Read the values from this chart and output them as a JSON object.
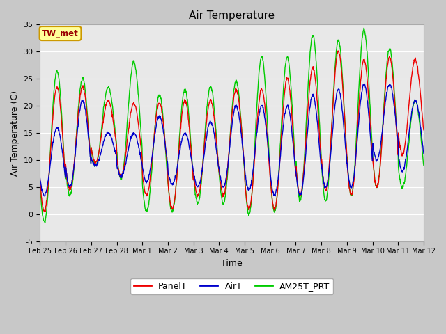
{
  "title": "Air Temperature",
  "xlabel": "Time",
  "ylabel": "Air Temperature (C)",
  "ylim": [
    -5,
    35
  ],
  "yticks": [
    -5,
    0,
    5,
    10,
    15,
    20,
    25,
    30,
    35
  ],
  "fig_bg_color": "#c8c8c8",
  "plot_bg_color": "#e8e8e8",
  "legend_labels": [
    "PanelT",
    "AirT",
    "AM25T_PRT"
  ],
  "legend_colors": [
    "#ee0000",
    "#0000cc",
    "#00cc00"
  ],
  "annotation_text": "TW_met",
  "annotation_color": "#990000",
  "annotation_bg": "#ffff99",
  "annotation_border": "#cc9900",
  "x_tick_labels": [
    "Feb 25",
    "Feb 26",
    "Feb 27",
    "Feb 28",
    "Mar 1",
    "Mar 2",
    "Mar 3",
    "Mar 4",
    "Mar 5",
    "Mar 6",
    "Mar 7",
    "Mar 8",
    "Mar 9",
    "Mar 10",
    "Mar 11",
    "Mar 12"
  ],
  "line_width": 1.0,
  "n_points": 1440,
  "n_days": 15,
  "min_panel": [
    0.5,
    4.5,
    9.5,
    7.0,
    3.5,
    1.0,
    3.5,
    3.5,
    1.0,
    1.0,
    3.5,
    4.5,
    3.5,
    5.0,
    11.0
  ],
  "max_panel": [
    23.5,
    23.5,
    21.0,
    20.5,
    20.5,
    21.0,
    21.0,
    23.0,
    23.0,
    25.0,
    27.0,
    30.0,
    28.5,
    29.0,
    28.5
  ],
  "min_air": [
    3.5,
    5.0,
    9.0,
    7.0,
    6.0,
    5.5,
    5.0,
    5.0,
    4.5,
    3.5,
    3.5,
    5.0,
    5.0,
    10.0,
    8.0
  ],
  "max_air": [
    16.0,
    21.0,
    15.0,
    15.0,
    18.0,
    15.0,
    17.0,
    20.0,
    20.0,
    20.0,
    22.0,
    23.0,
    24.0,
    24.0,
    21.0
  ],
  "min_am": [
    -1.5,
    3.5,
    9.0,
    6.5,
    0.5,
    0.5,
    2.0,
    2.0,
    0.0,
    0.5,
    2.5,
    2.5,
    3.5,
    5.0,
    5.0
  ],
  "max_am": [
    26.5,
    25.0,
    23.5,
    28.0,
    22.0,
    23.0,
    23.5,
    24.5,
    29.0,
    29.0,
    33.0,
    32.0,
    34.0,
    30.5,
    21.0
  ]
}
